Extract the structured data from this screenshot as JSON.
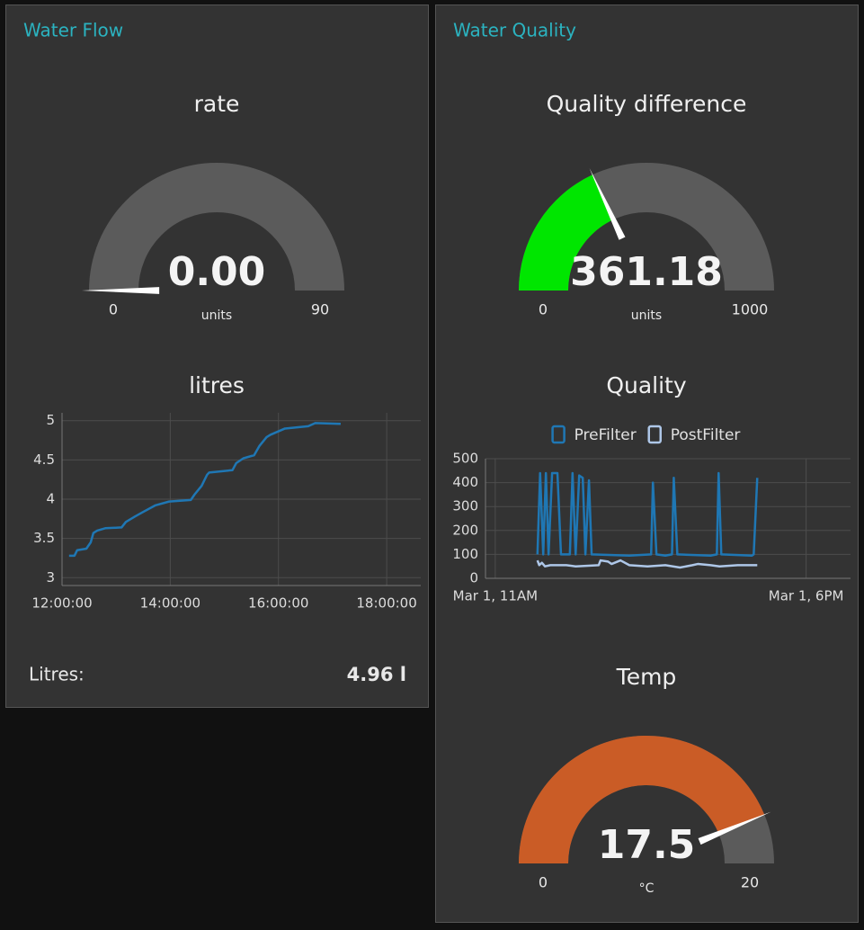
{
  "groups": [
    {
      "title": "Water Flow"
    },
    {
      "title": "Water Quality"
    }
  ],
  "chart_data": [
    {
      "type": "gauge",
      "title": "rate",
      "value": 0,
      "value_label": "0.00",
      "units": "units",
      "min": 0,
      "max": 90,
      "color": "#00e600"
    },
    {
      "type": "line",
      "title": "litres",
      "color": "#1f77b4",
      "x": [
        12.13,
        12.23,
        12.28,
        12.45,
        12.53,
        12.58,
        12.65,
        12.8,
        13.1,
        13.18,
        13.35,
        13.48,
        13.72,
        13.98,
        14.38,
        14.45,
        14.58,
        14.68,
        14.72,
        15.15,
        15.22,
        15.35,
        15.55,
        15.65,
        15.78,
        15.85,
        16.12,
        16.55,
        16.68,
        17.15
      ],
      "values": [
        3.28,
        3.28,
        3.35,
        3.37,
        3.45,
        3.57,
        3.6,
        3.63,
        3.64,
        3.71,
        3.78,
        3.83,
        3.92,
        3.97,
        3.99,
        4.06,
        4.17,
        4.31,
        4.34,
        4.37,
        4.46,
        4.52,
        4.56,
        4.68,
        4.79,
        4.82,
        4.9,
        4.93,
        4.97,
        4.96
      ],
      "xlim": [
        12,
        18.63
      ],
      "xticks": [
        {
          "value": 12,
          "label": "12:00:00"
        },
        {
          "value": 14,
          "label": "14:00:00"
        },
        {
          "value": 16,
          "label": "16:00:00"
        },
        {
          "value": 18,
          "label": "18:00:00"
        }
      ],
      "ylim": [
        2.9,
        5.1
      ],
      "yticks": [
        3,
        3.5,
        4,
        4.5,
        5
      ],
      "grid": true
    },
    {
      "type": "gauge",
      "title": "Quality difference",
      "value": 361.18,
      "units": "units",
      "min": 0,
      "max": 1000,
      "color": "#00e600"
    },
    {
      "type": "line",
      "title": "Quality",
      "series": [
        {
          "name": "PreFilter",
          "color": "#1f77b4",
          "x": [
            11.95,
            12.01,
            12.08,
            12.14,
            12.2,
            12.28,
            12.4,
            12.48,
            12.68,
            12.74,
            12.81,
            12.89,
            12.97,
            13.03,
            13.11,
            13.17,
            14.02,
            14.51,
            14.55,
            14.63,
            14.83,
            14.98,
            15.02,
            15.1,
            15.85,
            15.99,
            16.03,
            16.09,
            16.78,
            16.82,
            16.9
          ],
          "values": [
            100,
            440,
            100,
            440,
            100,
            440,
            440,
            100,
            100,
            440,
            100,
            430,
            420,
            100,
            410,
            100,
            95,
            100,
            400,
            100,
            95,
            100,
            420,
            100,
            95,
            100,
            440,
            100,
            95,
            100,
            420
          ]
        },
        {
          "name": "PostFilter",
          "color": "#aec7e8",
          "x": [
            11.95,
            11.99,
            12.05,
            12.12,
            12.24,
            12.6,
            12.81,
            13.33,
            13.37,
            13.54,
            13.62,
            13.82,
            14.02,
            14.43,
            14.83,
            15.16,
            15.44,
            15.56,
            15.85,
            16.05,
            16.46,
            16.9
          ],
          "values": [
            75,
            55,
            65,
            50,
            55,
            55,
            50,
            55,
            75,
            70,
            60,
            75,
            55,
            50,
            55,
            45,
            55,
            60,
            55,
            50,
            55,
            55
          ]
        }
      ],
      "xlim": [
        10.78,
        19.0
      ],
      "xticks": [
        {
          "value": 11,
          "label": "Mar 1, 11AM"
        },
        {
          "value": 18,
          "label": "Mar 1, 6PM"
        }
      ],
      "ylim": [
        0,
        500
      ],
      "yticks": [
        0,
        100,
        200,
        300,
        400,
        500
      ],
      "grid": true
    },
    {
      "type": "gauge",
      "title": "Temp",
      "value": 17.5,
      "units": "°C",
      "min": 0,
      "max": 20,
      "color": "#ca5c26"
    }
  ],
  "text_widget": {
    "label": "Litres:",
    "value": "4.96 l"
  }
}
